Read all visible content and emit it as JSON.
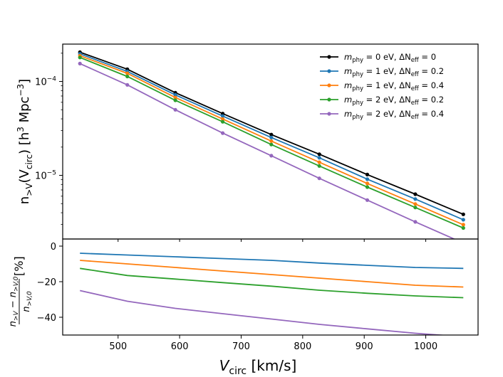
{
  "chart_data": [
    {
      "type": "line",
      "panel": "top",
      "yscale": "log",
      "ylabel": "n_{>V}(V_circ) [h^3 Mpc^-3]",
      "ylabel_parts": {
        "n": "n",
        "sub": ">V",
        "open": "(V",
        "circ": "circ",
        "close": ") [h",
        "h_exp": "3",
        "mpc": " Mpc",
        "mpc_exp": "−3",
        "end": "]"
      },
      "xlim": [
        410,
        1085
      ],
      "ylim": [
        2.1e-06,
        0.00025
      ],
      "y_ticks": [
        {
          "value": 1e-05,
          "base": "10",
          "exp": "−5"
        },
        {
          "value": 0.0001,
          "base": "10",
          "exp": "−4"
        }
      ],
      "x": [
        438,
        515,
        593,
        670,
        749,
        827,
        905,
        983,
        1061
      ],
      "legend_position": "upper right",
      "series": [
        {
          "name": "m_phy = 0 eV, ΔN_eff = 0",
          "label_parts": [
            "= 0 eV, ΔN",
            "= 0"
          ],
          "color": "#000000",
          "values": [
            0.000205,
            0.000135,
            7.6e-05,
            4.55e-05,
            2.72e-05,
            1.68e-05,
            1.02e-05,
            6.3e-06,
            3.85e-06
          ]
        },
        {
          "name": "m_phy = 1 eV, ΔN_eff = 0.2",
          "label_parts": [
            "= 1 eV, ΔN",
            "= 0.2"
          ],
          "color": "#1f77b4",
          "values": [
            0.000197,
            0.000128,
            7.2e-05,
            4.28e-05,
            2.53e-05,
            1.54e-05,
            9.1e-06,
            5.6e-06,
            3.37e-06
          ]
        },
        {
          "name": "m_phy = 1 eV, ΔN_eff = 0.4",
          "label_parts": [
            "= 1 eV, ΔN",
            "= 0.4"
          ],
          "color": "#ff7f0e",
          "values": [
            0.000188,
            0.000122,
            6.75e-05,
            3.98e-05,
            2.32e-05,
            1.38e-05,
            8.2e-06,
            4.95e-06,
            2.98e-06
          ]
        },
        {
          "name": "m_phy = 2 eV, ΔN_eff = 0.2",
          "label_parts": [
            "= 2 eV, ΔN",
            "= 0.2"
          ],
          "color": "#2ca02c",
          "values": [
            0.00018,
            0.000113,
            6.3e-05,
            3.72e-05,
            2.13e-05,
            1.26e-05,
            7.5e-06,
            4.55e-06,
            2.75e-06
          ]
        },
        {
          "name": "m_phy = 2 eV, ΔN_eff = 0.4",
          "label_parts": [
            "= 2 eV, ΔN",
            "= 0.4"
          ],
          "color": "#9467bd",
          "values": [
            0.000155,
            9.2e-05,
            5e-05,
            2.82e-05,
            1.62e-05,
            9.3e-06,
            5.45e-06,
            3.2e-06,
            1.9e-06
          ]
        }
      ]
    },
    {
      "type": "line",
      "panel": "bottom",
      "xlabel": "V_circ [km/s]",
      "xlabel_parts": {
        "v": "V",
        "sub": "circ",
        "unit": " [km/s]"
      },
      "ylabel": "(n_{>V} − n_{>V,0}) / n_{>V,0} [%]",
      "ylabel_parts": {
        "num_a": "n",
        "num_a_sub": ">V",
        "minus": " − ",
        "num_b": "n",
        "num_b_sub": ">V,0",
        "den": "n",
        "den_sub": ">V,0",
        "unit": "[%]"
      },
      "xlim": [
        410,
        1085
      ],
      "ylim": [
        -50,
        4
      ],
      "x_ticks": [
        500,
        600,
        700,
        800,
        900,
        1000
      ],
      "y_ticks": [
        0,
        -20,
        -40
      ],
      "x": [
        438,
        515,
        593,
        670,
        749,
        827,
        905,
        983,
        1061
      ],
      "series": [
        {
          "color": "#1f77b4",
          "values": [
            -4,
            -5,
            -6,
            -7,
            -8,
            -9.5,
            -10.8,
            -12,
            -12.5
          ]
        },
        {
          "color": "#ff7f0e",
          "values": [
            -8,
            -10,
            -12,
            -14,
            -16,
            -18,
            -20,
            -22,
            -23
          ]
        },
        {
          "color": "#2ca02c",
          "values": [
            -12.5,
            -16.5,
            -18.5,
            -20.5,
            -22.5,
            -24.8,
            -26.5,
            -28,
            -29
          ]
        },
        {
          "color": "#9467bd",
          "values": [
            -25,
            -31,
            -35,
            -38,
            -41,
            -44,
            -46.5,
            -49,
            -51
          ]
        }
      ]
    }
  ]
}
